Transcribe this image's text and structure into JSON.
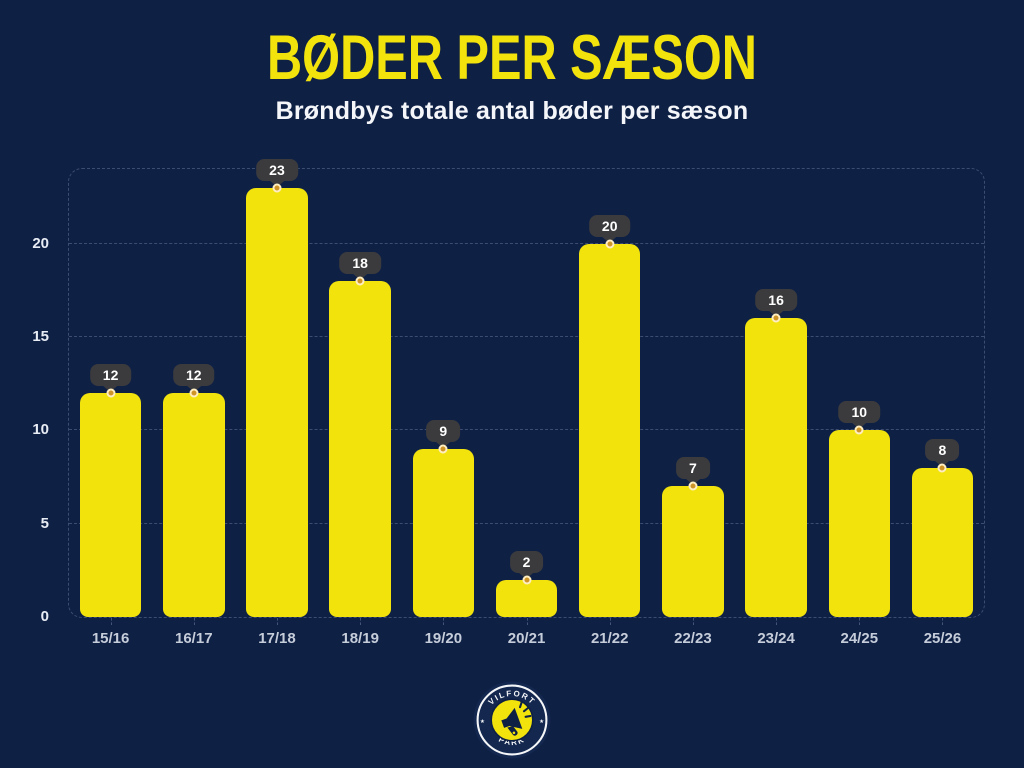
{
  "header": {
    "title": "BØDER PER SÆSON",
    "subtitle": "Brøndbys totale antal bøder per sæson"
  },
  "chart_data": {
    "type": "bar",
    "categories": [
      "15/16",
      "16/17",
      "17/18",
      "18/19",
      "19/20",
      "20/21",
      "21/22",
      "22/23",
      "23/24",
      "24/25",
      "25/26"
    ],
    "values": [
      12,
      12,
      23,
      18,
      9,
      2,
      20,
      7,
      16,
      10,
      8
    ],
    "title": "BØDER PER SÆSON",
    "subtitle": "Brøndbys totale antal bøder per sæson",
    "xlabel": "",
    "ylabel": "",
    "ylim": [
      0,
      24
    ],
    "yticks": [
      0,
      5,
      10,
      15,
      20
    ],
    "grid": "horizontal dashed gridlines, dashed rounded border around plot area",
    "legend": "none",
    "data_labels": "value shown in dark rounded badge above each bar with gold dot marker at bar top"
  },
  "colors": {
    "background": "#0f2045",
    "bar_yellow": "#f2e30d",
    "title_yellow": "#f2e30d",
    "badge_bg": "#3b3b3d",
    "badge_text": "#ffffff",
    "marker_fill": "#cf9427",
    "marker_stroke": "#ffeec2",
    "grid": "rgba(165,182,215,0.30)",
    "y_axis_text": "#e8ecf4",
    "x_axis_text": "#c6cdda"
  },
  "logo": {
    "top_text": "VILFORT",
    "bottom_text": "PARK",
    "icon": "megaphone-icon",
    "star_glyph": "★"
  }
}
